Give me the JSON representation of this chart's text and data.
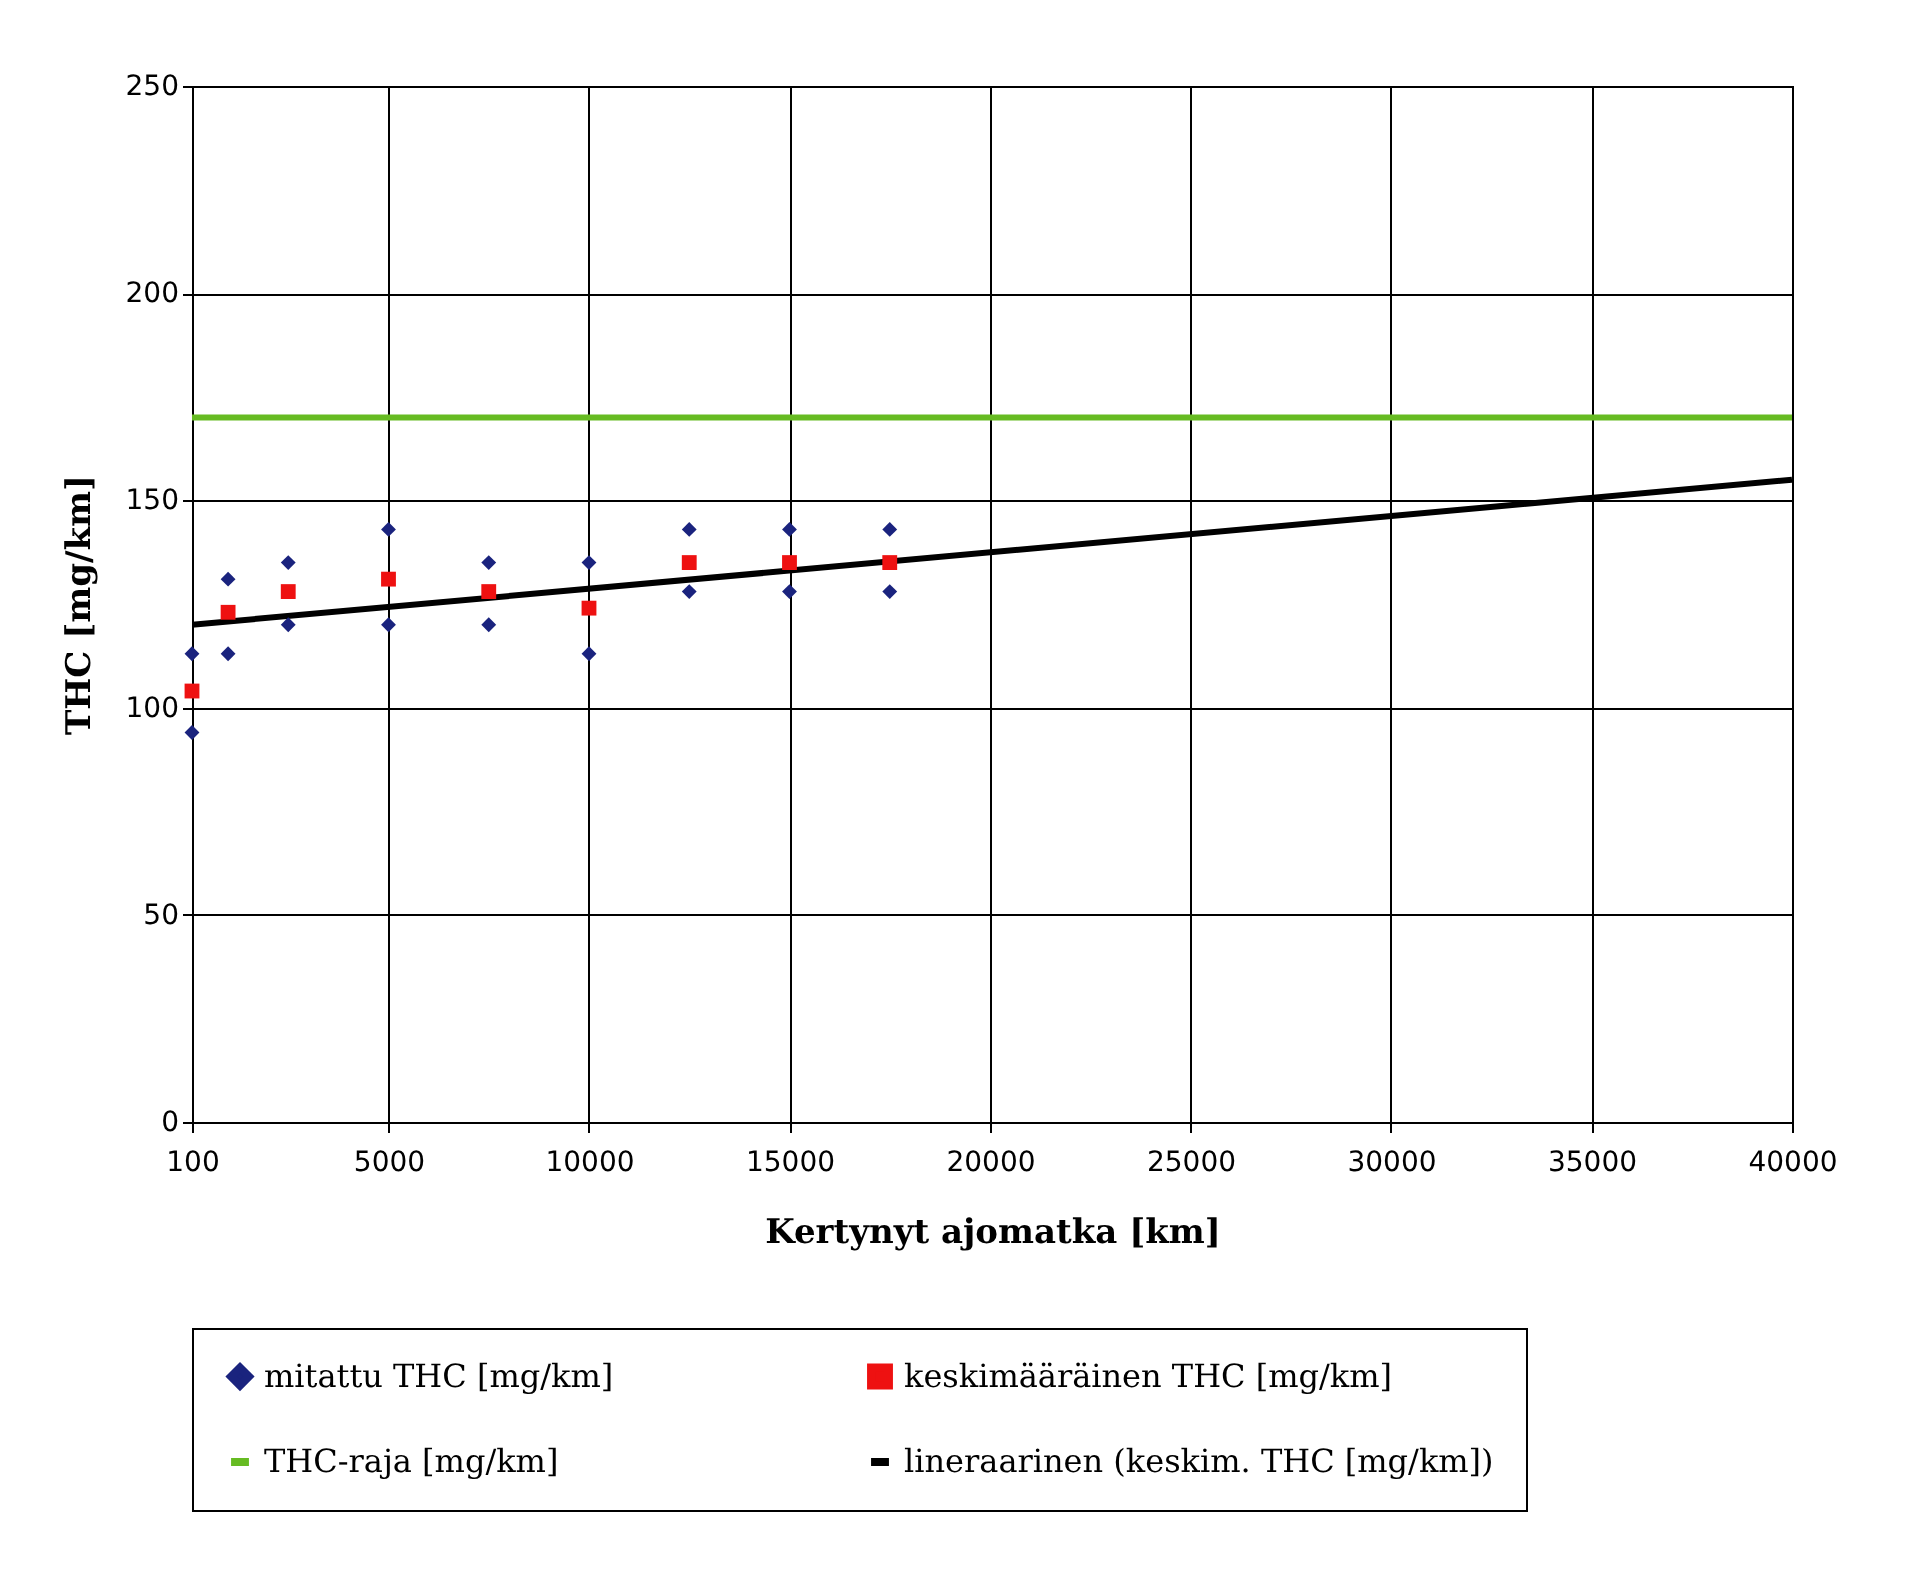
{
  "chart_data": {
    "type": "scatter",
    "xlabel": "Kertynyt ajomatka [km]",
    "ylabel": "THC [mg/km]",
    "xlim": [
      100,
      40000
    ],
    "xticks": [
      100,
      5000,
      10000,
      15000,
      20000,
      25000,
      30000,
      35000,
      40000
    ],
    "ylim": [
      0,
      250
    ],
    "yticks": [
      0,
      50,
      100,
      150,
      200,
      250
    ],
    "grid": true,
    "legend": "bottom",
    "series": [
      {
        "name": "mitattu THC [mg/km]",
        "type": "scatter",
        "marker": "diamond",
        "color": "#1a237e",
        "x": [
          100,
          100,
          1000,
          1000,
          2500,
          2500,
          5000,
          5000,
          7500,
          7500,
          10000,
          10000,
          12500,
          12500,
          15000,
          15000,
          17500,
          17500
        ],
        "values": [
          113,
          94,
          131,
          113,
          135,
          120,
          143,
          120,
          135,
          120,
          135,
          113,
          143,
          128,
          143,
          128,
          143,
          128
        ]
      },
      {
        "name": "keskimääräinen THC [mg/km]",
        "type": "scatter",
        "marker": "square",
        "color": "#ee1111",
        "x": [
          100,
          1000,
          2500,
          5000,
          7500,
          10000,
          12500,
          15000,
          17500
        ],
        "values": [
          104,
          123,
          128,
          131,
          128,
          124,
          135,
          135,
          135
        ]
      },
      {
        "name": "THC-raja [mg/km]",
        "type": "line",
        "marker": "none",
        "color": "#66bb22",
        "x": [
          100,
          40000
        ],
        "values": [
          170,
          170
        ]
      },
      {
        "name": "lineraarinen (keskim. THC [mg/km])",
        "type": "line",
        "marker": "none",
        "color": "#000000",
        "x": [
          100,
          40000
        ],
        "values": [
          120,
          155
        ]
      }
    ]
  }
}
